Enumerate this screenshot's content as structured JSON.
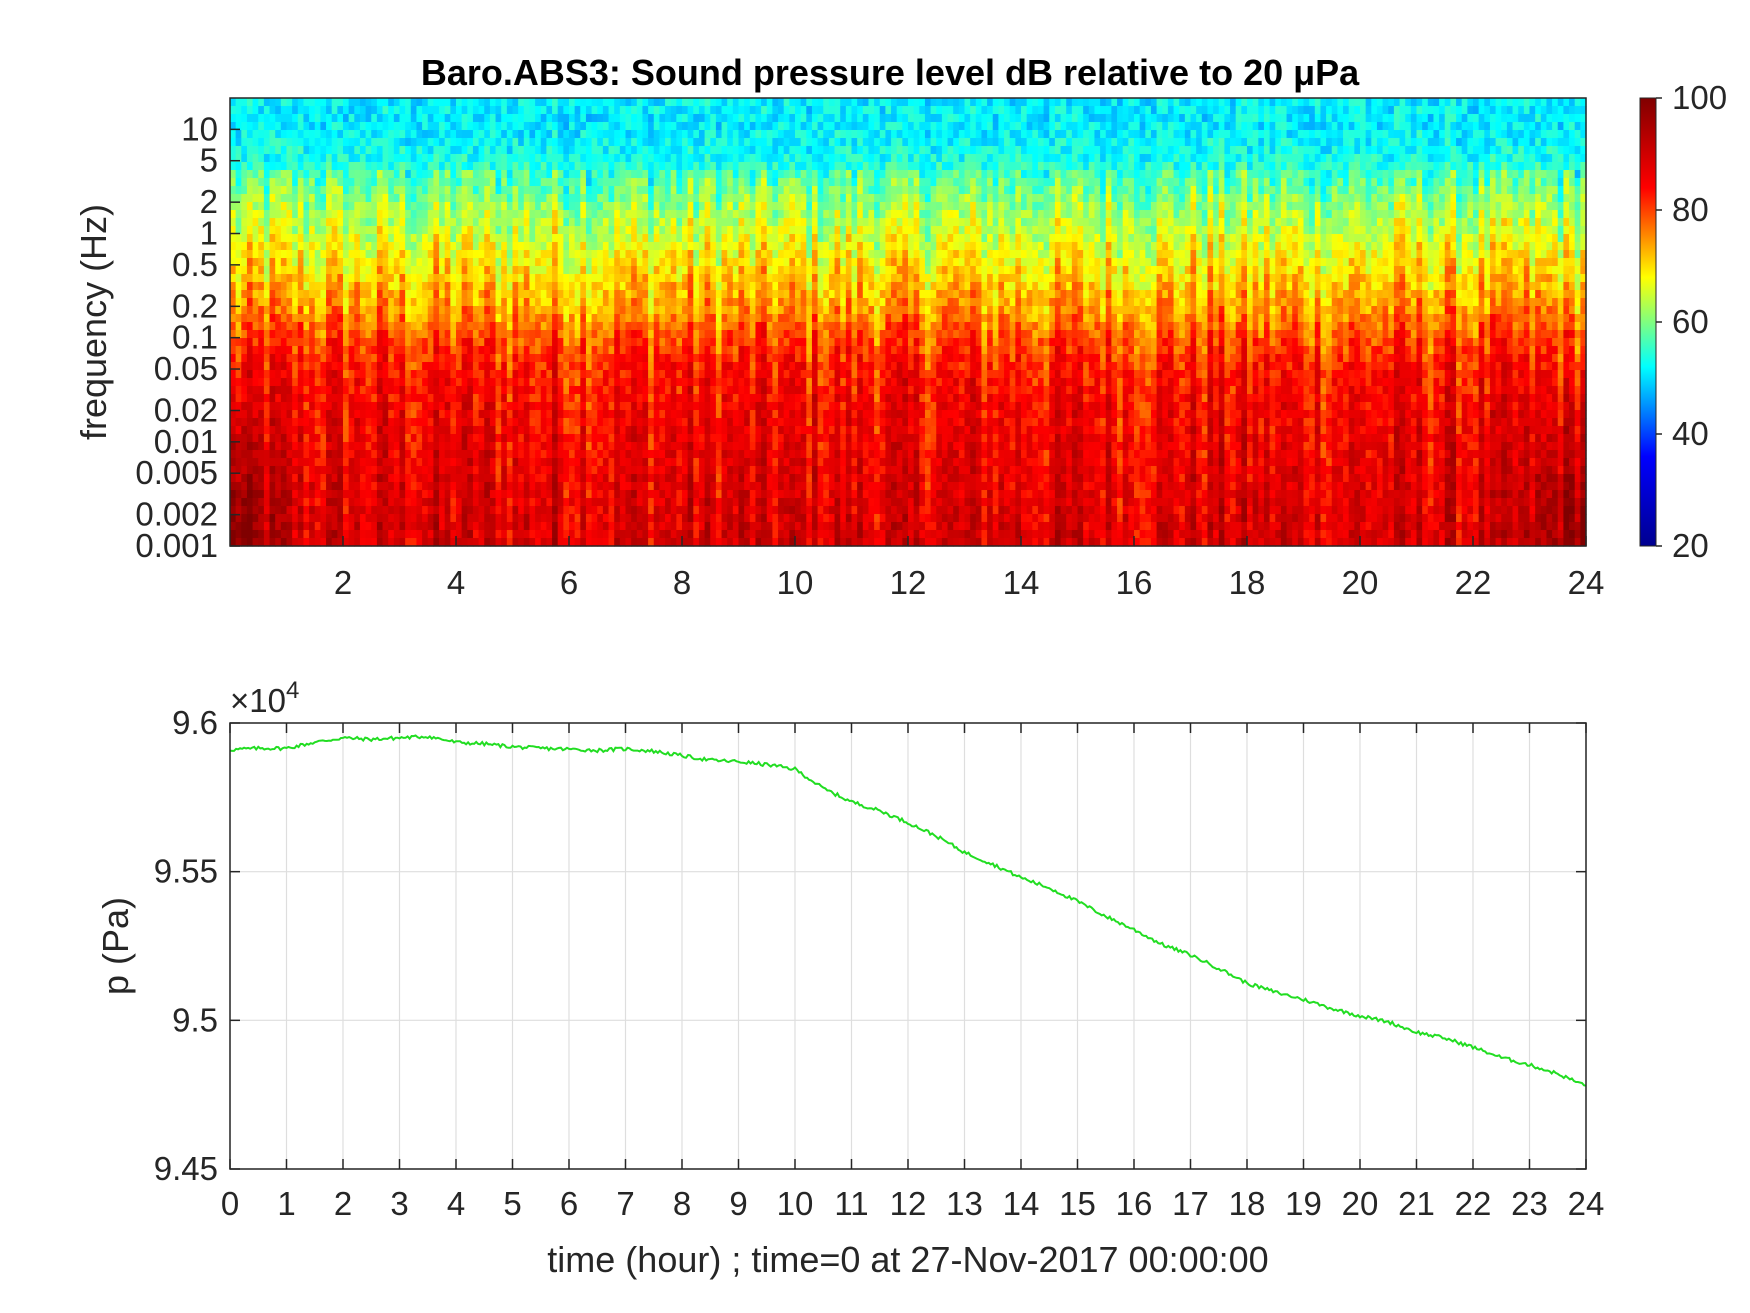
{
  "chart_data": [
    {
      "type": "heatmap",
      "title": "Baro.ABS3: Sound pressure level dB relative to 20 μPa",
      "ylabel": "frequency (Hz)",
      "xlabel": "",
      "x_range": [
        0,
        24
      ],
      "x_ticks": [
        2,
        4,
        6,
        8,
        10,
        12,
        14,
        16,
        18,
        20,
        22,
        24
      ],
      "y_scale": "log",
      "y_range": [
        0.001,
        20
      ],
      "y_ticks": [
        0.001,
        0.002,
        0.005,
        0.01,
        0.02,
        0.05,
        0.1,
        0.2,
        0.5,
        1,
        2,
        5,
        10
      ],
      "y_tick_labels": [
        "0.001",
        "0.002",
        "0.005",
        "0.01",
        "0.02",
        "0.05",
        "0.1",
        "0.2",
        "0.5",
        "1",
        "2",
        "5",
        "10"
      ],
      "colorbar": {
        "colormap": "jet",
        "range": [
          20,
          100
        ],
        "ticks": [
          20,
          40,
          60,
          80,
          100
        ],
        "colors": [
          "#00008f",
          "#0000ff",
          "#00ffff",
          "#ffff00",
          "#ff0000",
          "#800000"
        ]
      },
      "level_profile": {
        "frequency_hz": [
          0.001,
          0.002,
          0.005,
          0.01,
          0.02,
          0.05,
          0.1,
          0.2,
          0.5,
          1,
          2,
          5,
          10,
          20
        ],
        "level_db": [
          88,
          87,
          86,
          85,
          84,
          82,
          78,
          73,
          68,
          64,
          60,
          53,
          51,
          51
        ]
      },
      "grid": false
    },
    {
      "type": "line",
      "title": "",
      "xlabel": "time (hour) ; time=0 at 27-Nov-2017 00:00:00",
      "ylabel": "p (Pa)",
      "y_exponent_label": "×10",
      "y_exponent_power": "4",
      "xlim": [
        0,
        24
      ],
      "ylim": [
        9.45,
        9.6
      ],
      "x_ticks": [
        0,
        1,
        2,
        3,
        4,
        5,
        6,
        7,
        8,
        9,
        10,
        11,
        12,
        13,
        14,
        15,
        16,
        17,
        18,
        19,
        20,
        21,
        22,
        23,
        24
      ],
      "y_ticks": [
        9.45,
        9.5,
        9.55,
        9.6
      ],
      "y_tick_labels": [
        "9.45",
        "9.5",
        "9.55",
        "9.6"
      ],
      "grid": true,
      "color": "#22dd22",
      "series": [
        {
          "x": [
            0,
            0.5,
            1,
            1.5,
            2,
            2.5,
            3,
            3.5,
            4,
            4.5,
            5,
            5.5,
            6,
            6.5,
            7,
            7.5,
            8,
            8.5,
            9,
            9.5,
            10,
            10.5,
            11,
            11.5,
            12,
            12.5,
            13,
            13.5,
            14,
            14.5,
            15,
            15.5,
            16,
            16.5,
            17,
            17.5,
            18,
            18.5,
            19,
            19.5,
            20,
            20.5,
            21,
            21.5,
            22,
            22.5,
            23,
            23.5,
            24
          ],
          "y": [
            9.591,
            9.5915,
            9.5915,
            9.5935,
            9.595,
            9.5945,
            9.595,
            9.5955,
            9.5935,
            9.593,
            9.592,
            9.5915,
            9.5912,
            9.5908,
            9.5913,
            9.5905,
            9.589,
            9.5875,
            9.587,
            9.586,
            9.5845,
            9.578,
            9.5735,
            9.5705,
            9.5665,
            9.562,
            9.5565,
            9.5525,
            9.548,
            9.5445,
            9.54,
            9.535,
            9.5305,
            9.5255,
            9.522,
            9.5175,
            9.5125,
            9.5095,
            9.507,
            9.504,
            9.5015,
            9.4995,
            9.496,
            9.494,
            9.491,
            9.4875,
            9.485,
            9.482,
            9.478
          ]
        }
      ]
    }
  ]
}
